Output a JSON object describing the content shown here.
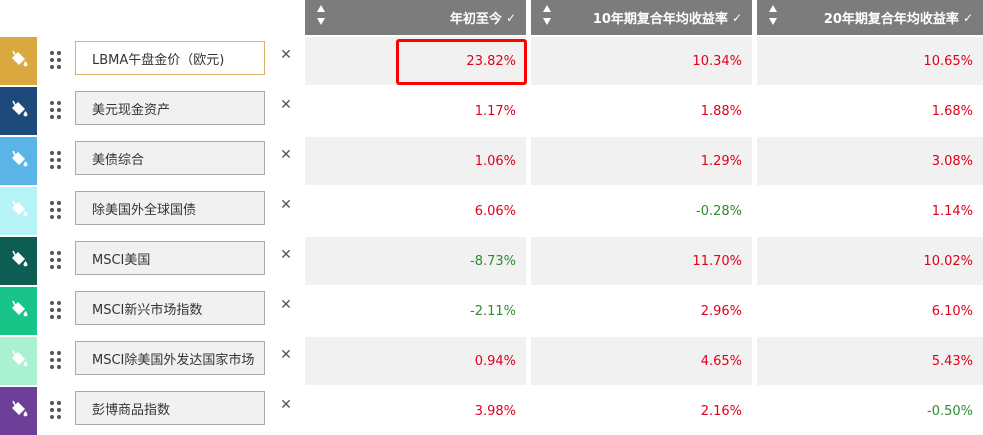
{
  "headers": [
    {
      "label": "年初至今",
      "check": "✓"
    },
    {
      "label": "10年期复合年均收益率",
      "check": "✓"
    },
    {
      "label": "20年期复合年均收益率",
      "check": "✓"
    }
  ],
  "colors": {
    "header_bg": "#7c7c7c",
    "positive": "#e0001b",
    "negative": "#2e8b32",
    "highlight_border": "#ff0000"
  },
  "remove_symbol": "✕",
  "rows": [
    {
      "label": "LBMA午盘金价（欧元)",
      "color": "#d9a83f",
      "active": true,
      "ytd": "23.82%",
      "cagr10": "10.34%",
      "cagr20": "10.65%"
    },
    {
      "label": "美元现金资产",
      "color": "#1d4a7a",
      "active": false,
      "ytd": "1.17%",
      "cagr10": "1.88%",
      "cagr20": "1.68%"
    },
    {
      "label": "美债综合",
      "color": "#5ab4e8",
      "active": false,
      "ytd": "1.06%",
      "cagr10": "1.29%",
      "cagr20": "3.08%"
    },
    {
      "label": "除美国外全球国债",
      "color": "#b5f3f7",
      "active": false,
      "ytd": "6.06%",
      "cagr10": "-0.28%",
      "cagr20": "1.14%"
    },
    {
      "label": "MSCI美国",
      "color": "#0d5d52",
      "active": false,
      "ytd": "-8.73%",
      "cagr10": "11.70%",
      "cagr20": "10.02%"
    },
    {
      "label": "MSCI新兴市场指数",
      "color": "#19c489",
      "active": false,
      "ytd": "-2.11%",
      "cagr10": "2.96%",
      "cagr20": "6.10%"
    },
    {
      "label": "MSCI除美国外发达国家市场",
      "color": "#a9f1d0",
      "active": false,
      "ytd": "0.94%",
      "cagr10": "4.65%",
      "cagr20": "5.43%"
    },
    {
      "label": "彭博商品指数",
      "color": "#6e3f99",
      "active": false,
      "ytd": "3.98%",
      "cagr10": "2.16%",
      "cagr20": "-0.50%"
    }
  ]
}
